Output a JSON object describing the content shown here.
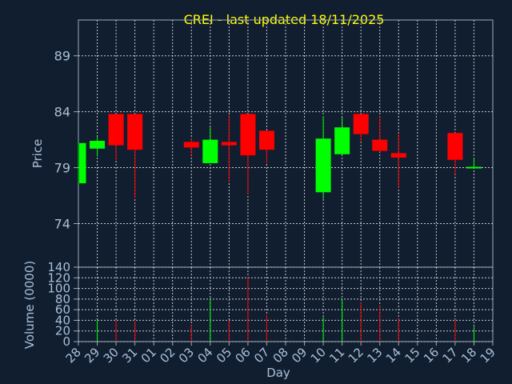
{
  "chart_data": [
    {
      "type": "candlestick",
      "title": "CREI - last updated 18/11/2025",
      "ylabel": "Price",
      "ylim": [
        70.1,
        92.2
      ],
      "yticks": [
        "74",
        "79",
        "84",
        "89"
      ],
      "x": [
        "28",
        "29",
        "30",
        "31",
        "01",
        "02",
        "03",
        "04",
        "05",
        "06",
        "07",
        "08",
        "09",
        "10",
        "11",
        "12",
        "13",
        "14",
        "15",
        "16",
        "17",
        "18",
        "19"
      ],
      "colors": {
        "up": "#00ff00",
        "down": "#ff0000",
        "flat": "#00ff00"
      },
      "candles": [
        {
          "day": "28",
          "open": 77.6,
          "high": 81.2,
          "low": 77.6,
          "close": 81.2
        },
        {
          "day": "29",
          "open": 80.7,
          "high": 81.8,
          "low": 80.0,
          "close": 81.4
        },
        {
          "day": "30",
          "open": 83.8,
          "high": 83.8,
          "low": 79.7,
          "close": 81.0
        },
        {
          "day": "31",
          "open": 83.8,
          "high": 83.8,
          "low": 76.3,
          "close": 80.6
        },
        {
          "day": "03",
          "open": 81.3,
          "high": 81.6,
          "low": 80.1,
          "close": 80.8
        },
        {
          "day": "04",
          "open": 79.4,
          "high": 82.6,
          "low": 79.4,
          "close": 81.5
        },
        {
          "day": "05",
          "open": 81.3,
          "high": 83.7,
          "low": 77.7,
          "close": 81.0
        },
        {
          "day": "06",
          "open": 83.8,
          "high": 83.8,
          "low": 76.6,
          "close": 80.1
        },
        {
          "day": "07",
          "open": 82.3,
          "high": 82.3,
          "low": 79.4,
          "close": 80.6
        },
        {
          "day": "10",
          "open": 76.8,
          "high": 83.6,
          "low": 76.2,
          "close": 81.6
        },
        {
          "day": "11",
          "open": 80.2,
          "high": 83.5,
          "low": 80.2,
          "close": 82.6
        },
        {
          "day": "12",
          "open": 83.8,
          "high": 83.8,
          "low": 81.3,
          "close": 82.0
        },
        {
          "day": "13",
          "open": 81.5,
          "high": 83.6,
          "low": 80.4,
          "close": 80.5
        },
        {
          "day": "14",
          "open": 80.3,
          "high": 82.1,
          "low": 77.2,
          "close": 79.9
        },
        {
          "day": "17",
          "open": 82.1,
          "high": 82.1,
          "low": 78.4,
          "close": 79.7
        },
        {
          "day": "18",
          "open": 79.0,
          "high": 79.9,
          "low": 79.0,
          "close": 79.0
        }
      ]
    },
    {
      "type": "bar",
      "ylabel": "Volume (0000)",
      "xlabel": "Day",
      "ylim": [
        0,
        140
      ],
      "yticks": [
        "0",
        "20",
        "40",
        "60",
        "80",
        "100",
        "120",
        "140"
      ],
      "values": [
        {
          "day": "28",
          "value": 0,
          "color": "#00ff00"
        },
        {
          "day": "29",
          "value": 40,
          "color": "#00ff00"
        },
        {
          "day": "30",
          "value": 40,
          "color": "#ff0000"
        },
        {
          "day": "31",
          "value": 38,
          "color": "#ff0000"
        },
        {
          "day": "03",
          "value": 32,
          "color": "#ff0000"
        },
        {
          "day": "04",
          "value": 82,
          "color": "#00ff00"
        },
        {
          "day": "05",
          "value": 40,
          "color": "#ff0000"
        },
        {
          "day": "06",
          "value": 122,
          "color": "#ff0000"
        },
        {
          "day": "07",
          "value": 50,
          "color": "#ff0000"
        },
        {
          "day": "10",
          "value": 46,
          "color": "#00ff00"
        },
        {
          "day": "11",
          "value": 80,
          "color": "#00ff00"
        },
        {
          "day": "12",
          "value": 74,
          "color": "#ff0000"
        },
        {
          "day": "13",
          "value": 68,
          "color": "#ff0000"
        },
        {
          "day": "14",
          "value": 44,
          "color": "#ff0000"
        },
        {
          "day": "17",
          "value": 42,
          "color": "#ff0000"
        },
        {
          "day": "18",
          "value": 28,
          "color": "#00ff00"
        }
      ]
    }
  ]
}
